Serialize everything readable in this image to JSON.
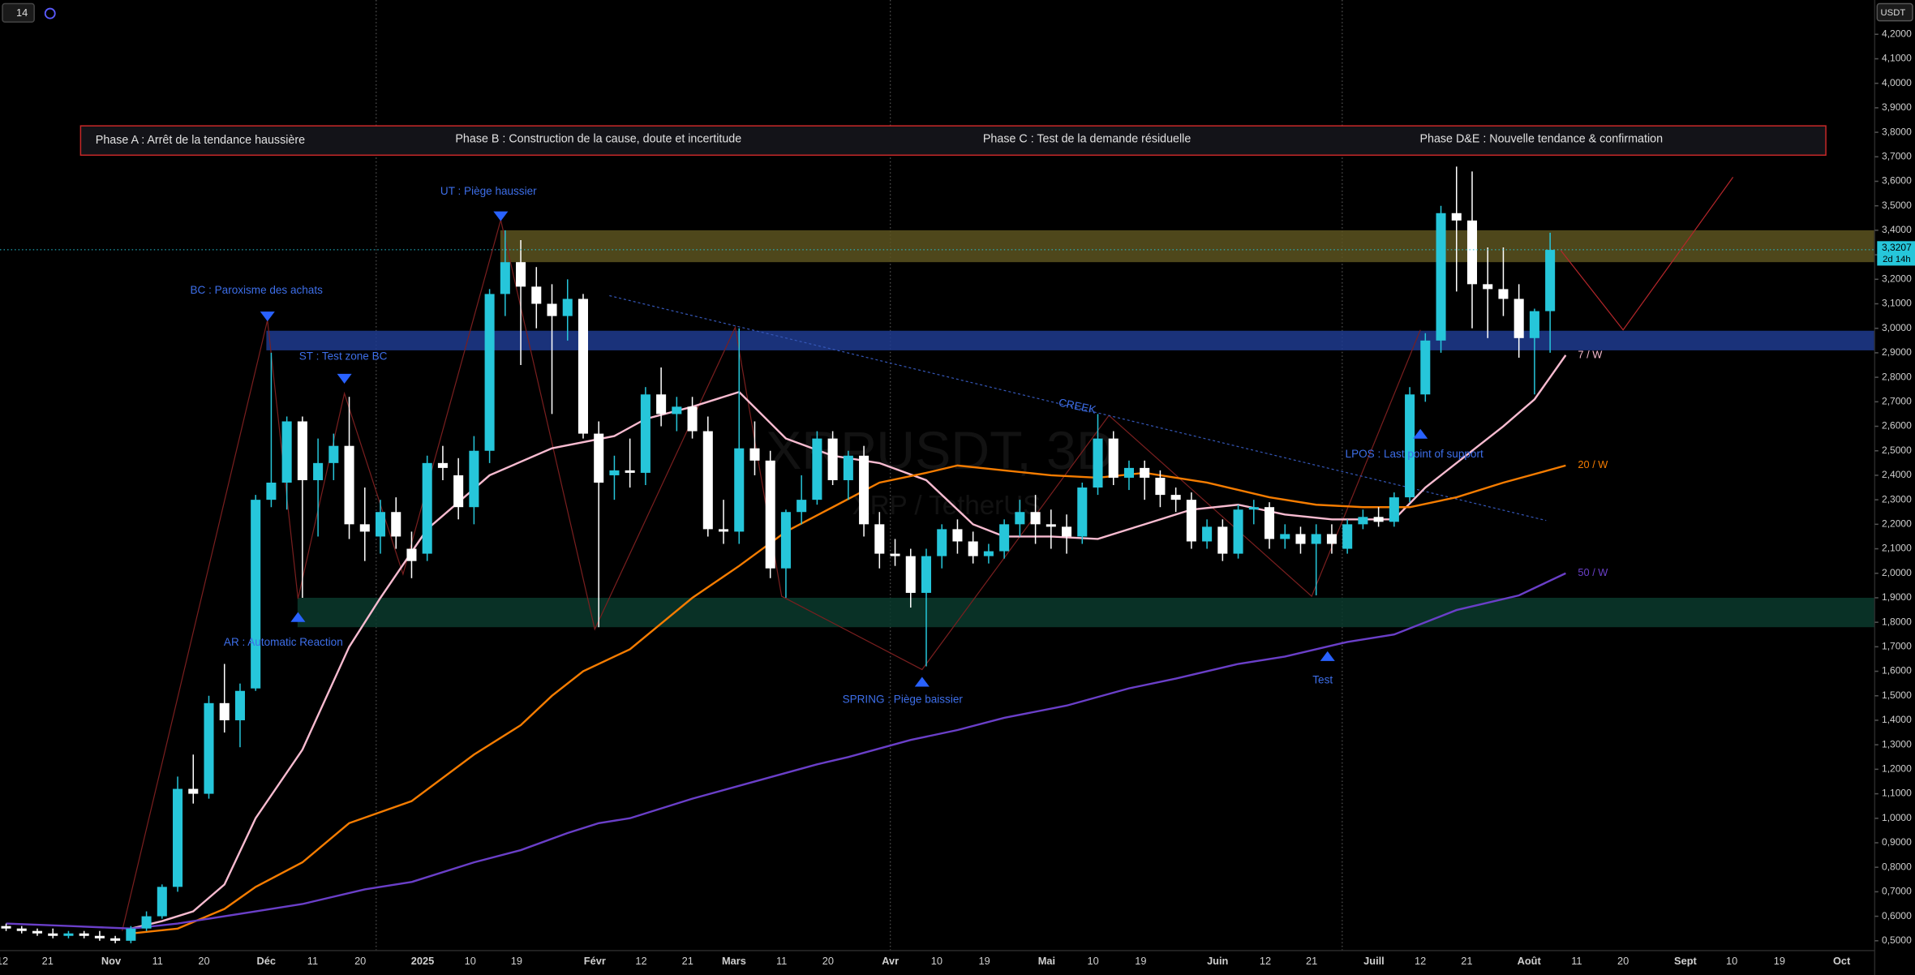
{
  "toolbar": {
    "badge": "14",
    "currency": "USDT"
  },
  "chart_data": {
    "type": "candlestick",
    "title": "XRPUSDT, 3D",
    "subtitle": "XRP / TetherUS",
    "up_color": "#26c6da",
    "down_color": "#ffffff",
    "open": [
      0.56,
      0.55,
      0.54,
      0.53,
      0.52,
      0.53,
      0.52,
      0.51,
      0.5,
      0.55,
      0.6,
      0.72,
      1.12,
      1.1,
      1.47,
      1.4,
      1.53,
      2.3,
      2.37,
      2.62,
      2.38,
      2.45,
      2.52,
      2.2,
      2.15,
      2.25,
      2.1,
      2.08,
      2.45,
      2.4,
      2.27,
      2.5,
      3.14,
      3.27,
      3.17,
      3.1,
      3.05,
      3.12,
      2.57,
      2.4,
      2.42,
      2.41,
      2.73,
      2.65,
      2.68,
      2.58,
      2.18,
      2.17,
      2.51,
      2.46,
      2.02,
      2.25,
      2.3,
      2.55,
      2.38,
      2.48,
      2.2,
      2.08,
      2.07,
      1.92,
      2.07,
      2.18,
      2.13,
      2.07,
      2.09,
      2.2,
      2.25,
      2.2,
      2.19,
      2.15,
      2.35,
      2.55,
      2.39,
      2.43,
      2.39,
      2.32,
      2.3,
      2.13,
      2.19,
      2.08,
      2.26,
      2.27,
      2.14,
      2.16,
      2.12,
      2.16,
      2.1,
      2.2,
      2.23,
      2.21,
      2.31,
      2.73,
      2.95,
      3.47,
      3.44,
      3.18,
      3.16,
      3.12,
      2.96,
      3.07
    ],
    "high": [
      0.57,
      0.56,
      0.55,
      0.55,
      0.54,
      0.54,
      0.54,
      0.52,
      0.56,
      0.62,
      0.73,
      1.17,
      1.26,
      1.5,
      1.63,
      1.55,
      2.32,
      2.9,
      2.64,
      2.64,
      2.55,
      2.57,
      2.72,
      2.35,
      2.3,
      2.31,
      2.17,
      2.48,
      2.52,
      2.47,
      2.56,
      3.16,
      3.4,
      3.36,
      3.25,
      3.18,
      3.2,
      3.14,
      2.62,
      2.48,
      2.55,
      2.76,
      2.84,
      2.72,
      2.72,
      2.64,
      2.3,
      3.0,
      2.62,
      2.5,
      2.26,
      2.4,
      2.58,
      2.58,
      2.5,
      2.52,
      2.25,
      2.14,
      2.1,
      2.1,
      2.2,
      2.22,
      2.17,
      2.12,
      2.22,
      2.3,
      2.32,
      2.26,
      2.24,
      2.37,
      2.65,
      2.58,
      2.46,
      2.46,
      2.42,
      2.35,
      2.33,
      2.22,
      2.22,
      2.28,
      2.3,
      2.29,
      2.2,
      2.19,
      2.2,
      2.2,
      2.22,
      2.26,
      2.27,
      2.33,
      2.76,
      2.98,
      3.5,
      3.66,
      3.64,
      3.33,
      3.33,
      3.18,
      3.08,
      3.39
    ],
    "low": [
      0.54,
      0.53,
      0.52,
      0.51,
      0.51,
      0.51,
      0.5,
      0.49,
      0.49,
      0.54,
      0.59,
      0.7,
      1.06,
      1.08,
      1.35,
      1.29,
      1.52,
      2.27,
      2.26,
      1.9,
      2.15,
      2.38,
      2.14,
      2.05,
      2.08,
      2.1,
      1.98,
      2.05,
      2.38,
      2.22,
      2.2,
      2.45,
      3.05,
      2.85,
      3.0,
      2.65,
      2.95,
      2.55,
      1.78,
      2.3,
      2.35,
      2.36,
      2.6,
      2.58,
      2.55,
      2.15,
      2.12,
      2.12,
      2.4,
      1.98,
      1.9,
      2.2,
      2.28,
      2.36,
      2.3,
      2.15,
      2.02,
      2.03,
      1.86,
      1.62,
      2.02,
      2.08,
      2.04,
      2.04,
      2.06,
      2.15,
      2.12,
      2.1,
      2.08,
      2.12,
      2.32,
      2.36,
      2.34,
      2.3,
      2.27,
      2.25,
      2.1,
      2.1,
      2.05,
      2.06,
      2.2,
      2.1,
      2.1,
      2.08,
      1.91,
      2.08,
      2.08,
      2.18,
      2.19,
      2.19,
      2.29,
      2.7,
      2.9,
      3.15,
      3.0,
      2.96,
      3.05,
      2.88,
      2.73,
      2.9
    ],
    "close": [
      0.55,
      0.54,
      0.53,
      0.52,
      0.53,
      0.52,
      0.51,
      0.5,
      0.55,
      0.6,
      0.72,
      1.12,
      1.1,
      1.47,
      1.4,
      1.52,
      2.3,
      2.37,
      2.62,
      2.38,
      2.45,
      2.52,
      2.2,
      2.17,
      2.25,
      2.15,
      2.05,
      2.45,
      2.43,
      2.27,
      2.5,
      3.14,
      3.27,
      3.17,
      3.1,
      3.05,
      3.12,
      2.57,
      2.37,
      2.42,
      2.41,
      2.73,
      2.65,
      2.68,
      2.58,
      2.18,
      2.17,
      2.51,
      2.46,
      2.02,
      2.25,
      2.3,
      2.55,
      2.38,
      2.48,
      2.2,
      2.08,
      2.07,
      1.92,
      2.07,
      2.18,
      2.13,
      2.07,
      2.09,
      2.2,
      2.25,
      2.2,
      2.19,
      2.15,
      2.35,
      2.55,
      2.39,
      2.43,
      2.39,
      2.32,
      2.3,
      2.13,
      2.19,
      2.08,
      2.26,
      2.27,
      2.14,
      2.16,
      2.12,
      2.16,
      2.12,
      2.2,
      2.23,
      2.21,
      2.31,
      2.73,
      2.95,
      3.47,
      3.44,
      3.18,
      3.16,
      3.12,
      2.96,
      3.07,
      3.32
    ],
    "moving_averages": [
      {
        "name": "7 / W",
        "color": "#f8bbd0",
        "x": [
          8,
          10,
          12,
          14,
          16,
          19,
          22,
          24,
          27,
          31,
          35,
          39,
          41,
          44,
          47,
          50,
          53,
          56,
          59,
          62,
          64,
          67,
          70,
          73,
          76,
          79,
          82,
          85,
          89,
          91,
          94,
          96,
          98,
          100
        ],
        "values": [
          0.55,
          0.58,
          0.62,
          0.73,
          1.0,
          1.28,
          1.7,
          1.9,
          2.18,
          2.4,
          2.51,
          2.56,
          2.63,
          2.68,
          2.74,
          2.55,
          2.48,
          2.45,
          2.38,
          2.2,
          2.15,
          2.15,
          2.14,
          2.2,
          2.26,
          2.28,
          2.24,
          2.22,
          2.22,
          2.35,
          2.5,
          2.6,
          2.71,
          2.89
        ]
      },
      {
        "name": "20 / W",
        "color": "#f57c00",
        "x": [
          8,
          11,
          14,
          16,
          19,
          22,
          26,
          30,
          33,
          35,
          37,
          40,
          44,
          47,
          50,
          53,
          56,
          59,
          61,
          64,
          67,
          70,
          73,
          77,
          81,
          84,
          87,
          90,
          93,
          96,
          100
        ],
        "values": [
          0.53,
          0.55,
          0.63,
          0.72,
          0.82,
          0.98,
          1.07,
          1.26,
          1.38,
          1.5,
          1.6,
          1.69,
          1.9,
          2.03,
          2.17,
          2.27,
          2.37,
          2.41,
          2.44,
          2.42,
          2.4,
          2.39,
          2.41,
          2.37,
          2.31,
          2.28,
          2.27,
          2.27,
          2.31,
          2.37,
          2.44
        ]
      },
      {
        "name": "50 / W",
        "color": "#6a3fc8",
        "x": [
          0,
          4,
          8,
          11,
          16,
          19,
          23,
          26,
          30,
          33,
          36,
          38,
          40,
          44,
          48,
          52,
          54,
          58,
          61,
          64,
          68,
          72,
          75,
          79,
          82,
          86,
          89,
          91,
          93,
          97,
          100
        ],
        "values": [
          0.57,
          0.56,
          0.55,
          0.57,
          0.62,
          0.65,
          0.71,
          0.74,
          0.82,
          0.87,
          0.94,
          0.98,
          1.0,
          1.08,
          1.15,
          1.22,
          1.25,
          1.32,
          1.36,
          1.41,
          1.46,
          1.53,
          1.57,
          1.63,
          1.66,
          1.72,
          1.75,
          1.8,
          1.85,
          1.91,
          2.0
        ]
      }
    ],
    "zones": [
      {
        "start": 32,
        "low": 3.27,
        "high": 3.4,
        "color": "#5c5320"
      },
      {
        "start": 17,
        "low": 2.91,
        "high": 2.99,
        "color": "#1f3b8f"
      },
      {
        "start": 19,
        "low": 1.78,
        "high": 1.9,
        "color": "#0b3a2d"
      }
    ],
    "last_price": {
      "value": 3.3207,
      "label": "3,3207",
      "countdown": "2d 14h"
    },
    "phases": [
      "Phase A : Arrêt de la tendance haussière",
      "Phase B : Construction de la cause, doute et incertitude",
      "Phase C : Test de la demande résiduelle",
      "Phase D&E : Nouvelle tendance & confirmation"
    ],
    "annotations": [
      "UT : Piège haussier",
      "BC : Paroxisme des achats",
      "ST : Test zone BC",
      "AR : Automatic Reaction",
      "SPRING : Piège baissier",
      "CREEK",
      "LPOS : Last point of support",
      "Test"
    ],
    "x_labels": [
      "12",
      "21",
      "Nov",
      "11",
      "20",
      "Déc",
      "11",
      "20",
      "2025",
      "10",
      "19",
      "Févr",
      "12",
      "21",
      "Mars",
      "11",
      "20",
      "Avr",
      "10",
      "19",
      "Mai",
      "10",
      "19",
      "Juin",
      "12",
      "21",
      "Juill",
      "12",
      "21",
      "Août",
      "11",
      "20",
      "Sept",
      "10",
      "19",
      "Oct"
    ],
    "ylim": [
      0.46,
      4.34
    ],
    "yticks": [
      {
        "value": 0.5,
        "label": "0,5000"
      },
      {
        "value": 0.6,
        "label": "0,6000"
      },
      {
        "value": 0.7,
        "label": "0,7000"
      },
      {
        "value": 0.8,
        "label": "0,8000"
      },
      {
        "value": 0.9,
        "label": "0,9000"
      },
      {
        "value": 1.0,
        "label": "1,0000"
      },
      {
        "value": 1.1,
        "label": "1,1000"
      },
      {
        "value": 1.2,
        "label": "1,2000"
      },
      {
        "value": 1.3,
        "label": "1,3000"
      },
      {
        "value": 1.4,
        "label": "1,4000"
      },
      {
        "value": 1.5,
        "label": "1,5000"
      },
      {
        "value": 1.6,
        "label": "1,6000"
      },
      {
        "value": 1.7,
        "label": "1,7000"
      },
      {
        "value": 1.8,
        "label": "1,8000"
      },
      {
        "value": 1.9,
        "label": "1,9000"
      },
      {
        "value": 2.0,
        "label": "2,0000"
      },
      {
        "value": 2.1,
        "label": "2,1000"
      },
      {
        "value": 2.2,
        "label": "2,2000"
      },
      {
        "value": 2.3,
        "label": "2,3000"
      },
      {
        "value": 2.4,
        "label": "2,4000"
      },
      {
        "value": 2.5,
        "label": "2,5000"
      },
      {
        "value": 2.6,
        "label": "2,6000"
      },
      {
        "value": 2.7,
        "label": "2,7000"
      },
      {
        "value": 2.8,
        "label": "2,8000"
      },
      {
        "value": 2.9,
        "label": "2,9000"
      },
      {
        "value": 3.0,
        "label": "3,0000"
      },
      {
        "value": 3.1,
        "label": "3,1000"
      },
      {
        "value": 3.2,
        "label": "3,2000"
      },
      {
        "value": 3.3,
        "label": "3,3000"
      },
      {
        "value": 3.4,
        "label": "3,4000"
      },
      {
        "value": 3.5,
        "label": "3,5000"
      },
      {
        "value": 3.6,
        "label": "3,6000"
      },
      {
        "value": 3.7,
        "label": "3,7000"
      },
      {
        "value": 3.8,
        "label": "3,8000"
      },
      {
        "value": 3.9,
        "label": "3,9000"
      },
      {
        "value": 4.0,
        "label": "4,0000"
      },
      {
        "value": 4.1,
        "label": "4,1000"
      },
      {
        "value": 4.2,
        "label": "4,2000"
      }
    ]
  }
}
